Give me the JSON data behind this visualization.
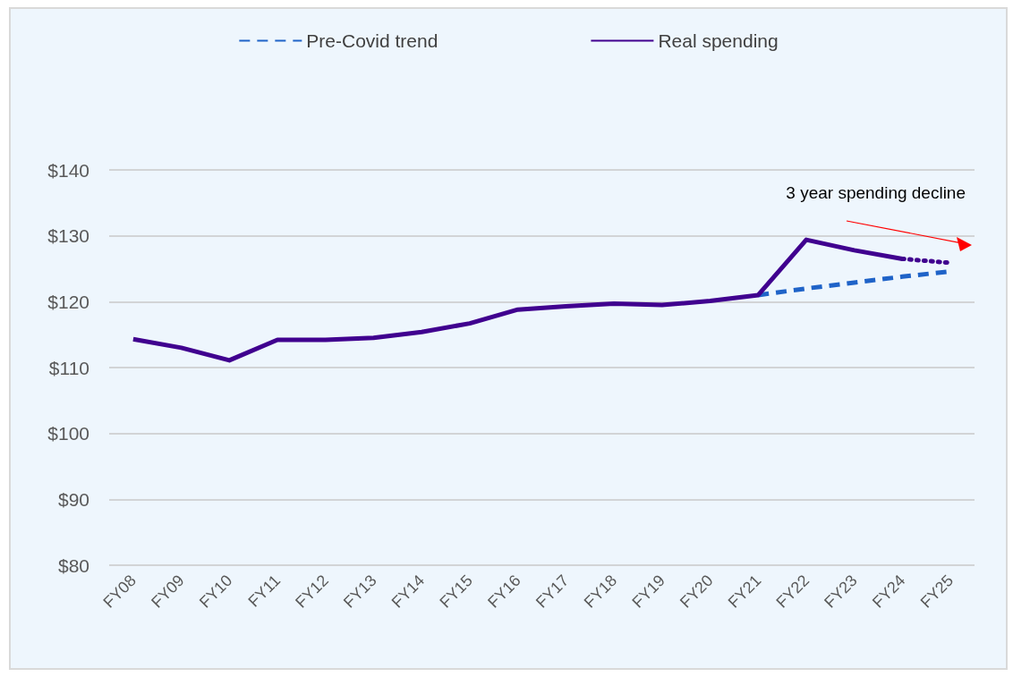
{
  "chart_data": {
    "type": "line",
    "categories": [
      "FY08",
      "FY09",
      "FY10",
      "FY11",
      "FY12",
      "FY13",
      "FY14",
      "FY15",
      "FY16",
      "FY17",
      "FY18",
      "FY19",
      "FY20",
      "FY21",
      "FY22",
      "FY23",
      "FY24",
      "FY25"
    ],
    "series": [
      {
        "name": "Pre-Covid trend",
        "color": "#1f63c8",
        "line_style": "dashed",
        "values": [
          null,
          null,
          null,
          null,
          null,
          null,
          null,
          null,
          null,
          null,
          null,
          null,
          null,
          121.0,
          122.0,
          122.9,
          123.8,
          124.6
        ]
      },
      {
        "name": "Real spending",
        "color": "#40008f",
        "line_style": "solid",
        "values": [
          114.3,
          113.0,
          111.1,
          114.2,
          114.2,
          114.5,
          115.4,
          116.7,
          118.8,
          119.3,
          119.7,
          119.5,
          120.1,
          121.0,
          129.4,
          127.8,
          126.5,
          null
        ]
      },
      {
        "color": "#40008f",
        "line_style": "dotted",
        "values": [
          null,
          null,
          null,
          null,
          null,
          null,
          null,
          null,
          null,
          null,
          null,
          null,
          null,
          null,
          null,
          null,
          126.5,
          125.9
        ]
      }
    ],
    "ylim": [
      80,
      140
    ],
    "yticks": [
      {
        "value": 80,
        "label": "$80"
      },
      {
        "value": 90,
        "label": "$90"
      },
      {
        "value": 100,
        "label": "$100"
      },
      {
        "value": 110,
        "label": "$110"
      },
      {
        "value": 120,
        "label": "$120"
      },
      {
        "value": 130,
        "label": "$130"
      },
      {
        "value": 140,
        "label": "$140"
      }
    ],
    "grid": "y",
    "legend": "top",
    "marker": "none",
    "annotations": [
      "3 year spending decline"
    ]
  }
}
